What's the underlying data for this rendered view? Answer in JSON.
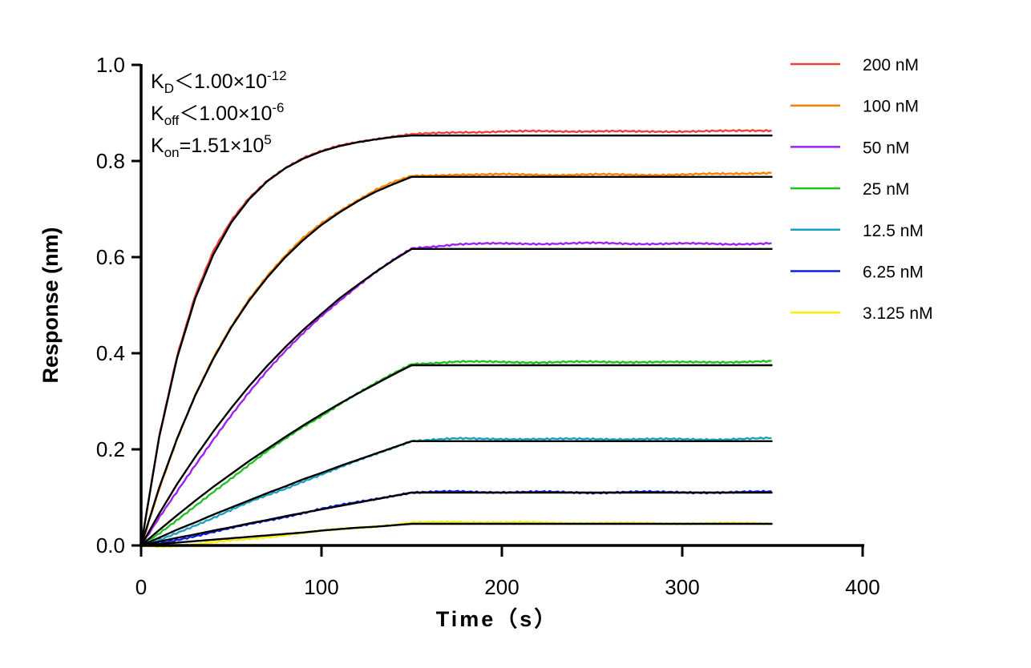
{
  "chart_data": {
    "type": "line",
    "xlabel": "Time（s）",
    "ylabel": "Response (nm)",
    "xlim": [
      0,
      400
    ],
    "ylim": [
      0,
      1.0
    ],
    "xticks": [
      "0",
      "100",
      "200",
      "300",
      "400"
    ],
    "yticks": [
      "0.0",
      "0.2",
      "0.4",
      "0.6",
      "0.8",
      "1.0"
    ],
    "grid": false,
    "legend_position": "right",
    "fit_color": "#000000",
    "annotations": [
      {
        "sym": "K",
        "sub": "D",
        "rel": "＜1.00×10",
        "exp": "-12"
      },
      {
        "sym": "K",
        "sub": "off",
        "rel": "＜1.00×10",
        "exp": "-6"
      },
      {
        "sym": "K",
        "sub": "on",
        "rel": "=1.51×10",
        "exp": "5"
      }
    ],
    "x": [
      0,
      10,
      20,
      30,
      40,
      50,
      60,
      70,
      80,
      90,
      100,
      110,
      120,
      130,
      140,
      150,
      175,
      200,
      225,
      250,
      275,
      300,
      325,
      350
    ],
    "series": [
      {
        "name": "200 nM",
        "color": "#f0403c",
        "measured": [
          0,
          0.228,
          0.396,
          0.52,
          0.612,
          0.676,
          0.724,
          0.76,
          0.786,
          0.806,
          0.82,
          0.832,
          0.84,
          0.846,
          0.851,
          0.855,
          0.86,
          0.861,
          0.862,
          0.862,
          0.861,
          0.862,
          0.862,
          0.864
        ],
        "fit": [
          0,
          0.225,
          0.391,
          0.514,
          0.605,
          0.672,
          0.721,
          0.758,
          0.785,
          0.805,
          0.82,
          0.831,
          0.839,
          0.845,
          0.85,
          0.853,
          0.853,
          0.853,
          0.853,
          0.853,
          0.853,
          0.853,
          0.853,
          0.853
        ]
      },
      {
        "name": "100 nM",
        "color": "#ff8000",
        "measured": [
          0,
          0.118,
          0.222,
          0.312,
          0.39,
          0.456,
          0.514,
          0.562,
          0.603,
          0.64,
          0.67,
          0.696,
          0.719,
          0.74,
          0.756,
          0.768,
          0.772,
          0.772,
          0.771,
          0.772,
          0.771,
          0.772,
          0.773,
          0.776
        ],
        "fit": [
          0,
          0.12,
          0.223,
          0.312,
          0.388,
          0.454,
          0.51,
          0.558,
          0.6,
          0.636,
          0.667,
          0.693,
          0.716,
          0.736,
          0.752,
          0.767,
          0.767,
          0.767,
          0.767,
          0.767,
          0.767,
          0.767,
          0.767,
          0.767
        ]
      },
      {
        "name": "50 nM",
        "color": "#a020f0",
        "measured": [
          0,
          0.058,
          0.112,
          0.166,
          0.22,
          0.272,
          0.32,
          0.364,
          0.404,
          0.442,
          0.478,
          0.51,
          0.54,
          0.568,
          0.594,
          0.618,
          0.627,
          0.628,
          0.628,
          0.629,
          0.628,
          0.628,
          0.627,
          0.629
        ],
        "fit": [
          0,
          0.066,
          0.128,
          0.184,
          0.237,
          0.286,
          0.332,
          0.374,
          0.413,
          0.449,
          0.482,
          0.514,
          0.542,
          0.569,
          0.594,
          0.617,
          0.617,
          0.617,
          0.617,
          0.617,
          0.617,
          0.617,
          0.617,
          0.617
        ]
      },
      {
        "name": "25 nM",
        "color": "#22c022",
        "measured": [
          0,
          0.024,
          0.052,
          0.082,
          0.112,
          0.14,
          0.168,
          0.196,
          0.222,
          0.248,
          0.27,
          0.294,
          0.316,
          0.337,
          0.358,
          0.378,
          0.382,
          0.382,
          0.381,
          0.382,
          0.382,
          0.381,
          0.382,
          0.383
        ],
        "fit": [
          0,
          0.032,
          0.063,
          0.093,
          0.122,
          0.149,
          0.176,
          0.201,
          0.226,
          0.25,
          0.273,
          0.295,
          0.316,
          0.336,
          0.356,
          0.375,
          0.375,
          0.375,
          0.375,
          0.375,
          0.375,
          0.375,
          0.375,
          0.375
        ]
      },
      {
        "name": "12.5 nM",
        "color": "#1ca0c0",
        "measured": [
          0,
          0.01,
          0.026,
          0.042,
          0.058,
          0.074,
          0.09,
          0.104,
          0.118,
          0.134,
          0.148,
          0.162,
          0.176,
          0.19,
          0.204,
          0.218,
          0.222,
          0.222,
          0.221,
          0.222,
          0.221,
          0.221,
          0.221,
          0.223
        ],
        "fit": [
          0,
          0.016,
          0.033,
          0.048,
          0.064,
          0.079,
          0.094,
          0.109,
          0.123,
          0.138,
          0.151,
          0.165,
          0.178,
          0.191,
          0.204,
          0.217,
          0.217,
          0.217,
          0.217,
          0.217,
          0.217,
          0.217,
          0.217,
          0.217
        ]
      },
      {
        "name": "6.25 nM",
        "color": "#0a1ee6",
        "measured": [
          0,
          0.004,
          0.012,
          0.02,
          0.028,
          0.036,
          0.044,
          0.052,
          0.06,
          0.068,
          0.076,
          0.083,
          0.09,
          0.097,
          0.104,
          0.11,
          0.112,
          0.111,
          0.111,
          0.11,
          0.111,
          0.111,
          0.11,
          0.112
        ],
        "fit": [
          0,
          0.008,
          0.016,
          0.023,
          0.031,
          0.038,
          0.046,
          0.053,
          0.061,
          0.068,
          0.075,
          0.082,
          0.089,
          0.096,
          0.103,
          0.11,
          0.11,
          0.11,
          0.11,
          0.11,
          0.11,
          0.11,
          0.11,
          0.11
        ]
      },
      {
        "name": "3.125 nM",
        "color": "#f5f000",
        "measured": [
          0,
          -0.002,
          0.0,
          0.002,
          0.006,
          0.01,
          0.014,
          0.018,
          0.022,
          0.026,
          0.03,
          0.034,
          0.037,
          0.04,
          0.043,
          0.047,
          0.049,
          0.048,
          0.047,
          0.047,
          0.046,
          0.046,
          0.046,
          0.046
        ],
        "fit": [
          0,
          0.003,
          0.006,
          0.009,
          0.012,
          0.015,
          0.018,
          0.021,
          0.024,
          0.027,
          0.031,
          0.034,
          0.037,
          0.039,
          0.042,
          0.045,
          0.045,
          0.045,
          0.045,
          0.045,
          0.045,
          0.045,
          0.045,
          0.045
        ]
      }
    ]
  }
}
